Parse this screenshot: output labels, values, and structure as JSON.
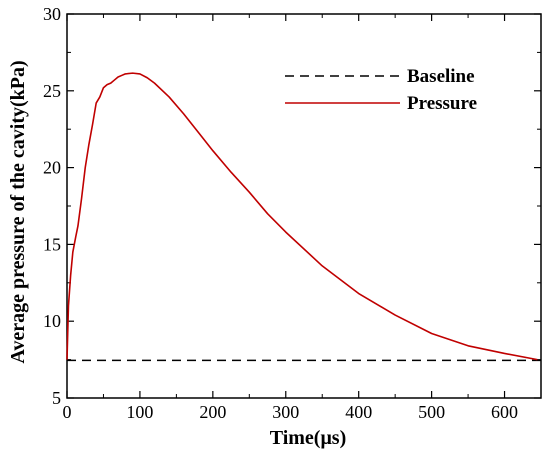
{
  "chart_data": {
    "type": "line",
    "title": "",
    "xlabel": "Time(μs)",
    "ylabel": "Average pressure of the cavity(kPa)",
    "xlim": [
      0,
      650
    ],
    "ylim": [
      5,
      30
    ],
    "xticks": [
      0,
      100,
      200,
      300,
      400,
      500,
      600
    ],
    "yticks": [
      5,
      10,
      15,
      20,
      25,
      30
    ],
    "grid": false,
    "legend_position": "top-right",
    "series": [
      {
        "name": "Baseline",
        "style": "dashed",
        "color": "#000000",
        "x": [
          0,
          650
        ],
        "y": [
          7.45,
          7.45
        ]
      },
      {
        "name": "Pressure",
        "style": "solid",
        "color": "#c00000",
        "x": [
          0,
          2,
          5,
          8,
          12,
          15,
          20,
          25,
          30,
          35,
          40,
          45,
          50,
          55,
          60,
          65,
          70,
          75,
          80,
          90,
          100,
          110,
          120,
          140,
          160,
          180,
          200,
          225,
          250,
          275,
          300,
          350,
          400,
          450,
          500,
          550,
          600,
          645
        ],
        "y": [
          7.5,
          11.0,
          13.0,
          14.5,
          15.5,
          16.2,
          18.0,
          20.0,
          21.5,
          22.8,
          24.2,
          24.6,
          25.2,
          25.4,
          25.5,
          25.7,
          25.9,
          26.0,
          26.1,
          26.15,
          26.1,
          25.85,
          25.5,
          24.6,
          23.5,
          22.3,
          21.1,
          19.7,
          18.4,
          17.0,
          15.8,
          13.6,
          11.8,
          10.4,
          9.2,
          8.4,
          7.9,
          7.5
        ]
      }
    ]
  }
}
